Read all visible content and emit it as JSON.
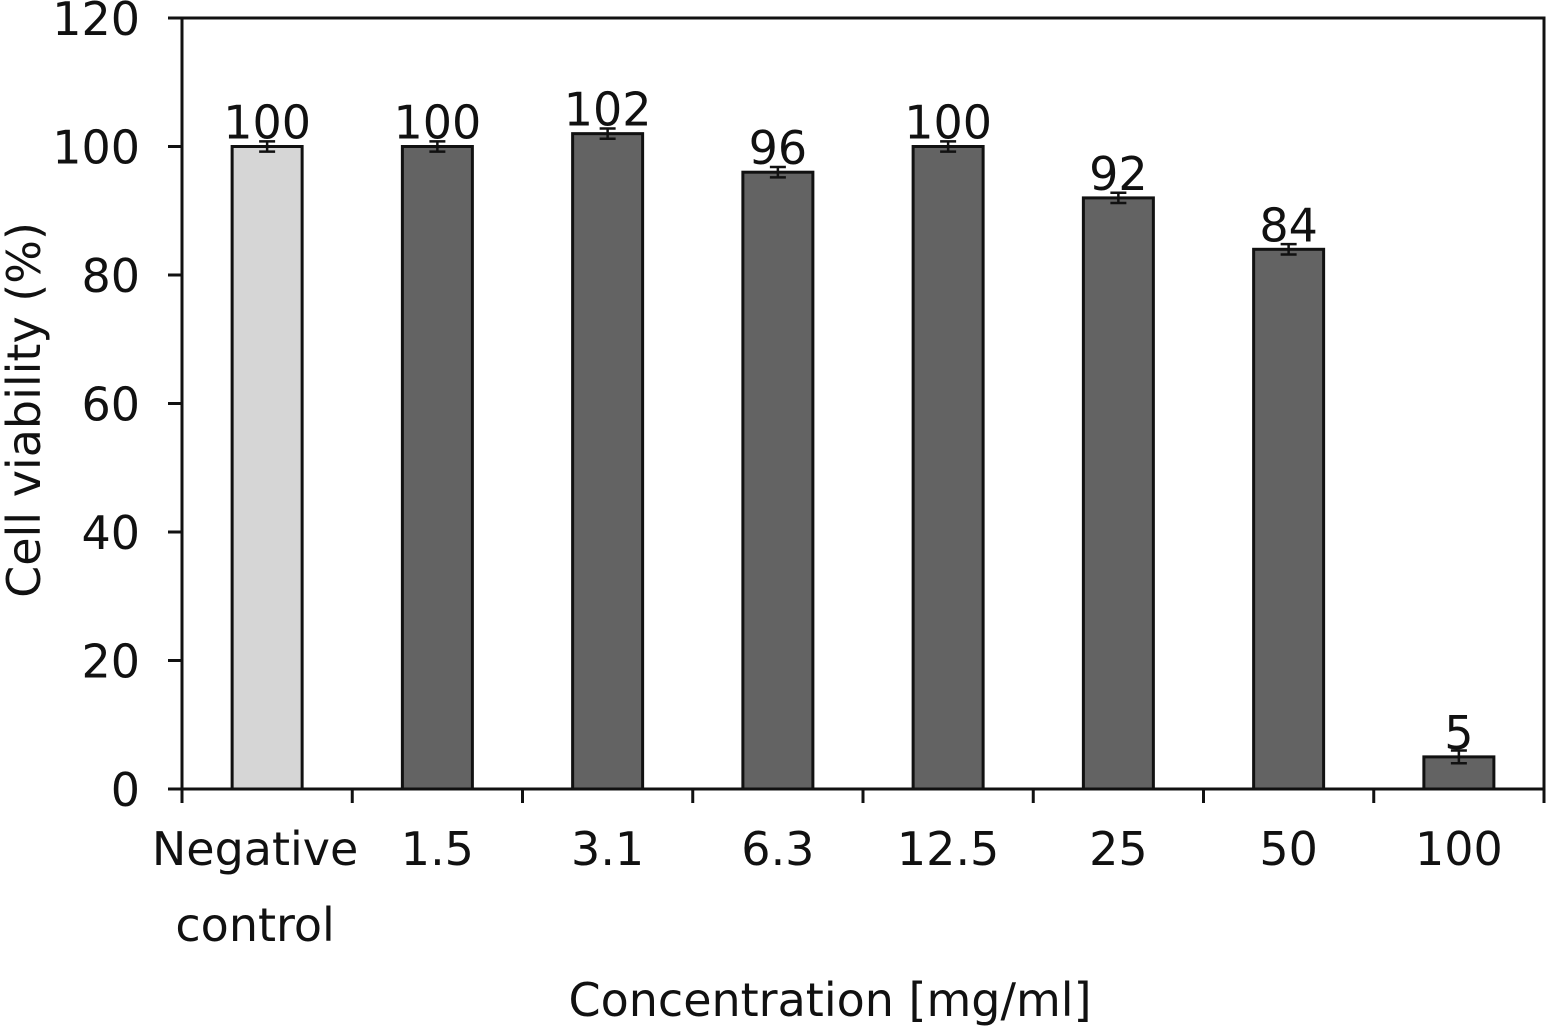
{
  "chart_data": {
    "type": "bar",
    "title": "",
    "xlabel": "Concentration [mg/ml]",
    "ylabel": "Cell viability (%)",
    "ylim": [
      0,
      120
    ],
    "yticks": [
      0,
      20,
      40,
      60,
      80,
      100,
      120
    ],
    "grid": false,
    "categories": [
      [
        "Negative",
        "control"
      ],
      [
        "1.5"
      ],
      [
        "3.1"
      ],
      [
        "6.3"
      ],
      [
        "12.5"
      ],
      [
        "25"
      ],
      [
        "50"
      ],
      [
        "100"
      ]
    ],
    "values": [
      100,
      100,
      102,
      96,
      100,
      92,
      84,
      5
    ],
    "data_labels": [
      "100",
      "100",
      "102",
      "96",
      "100",
      "92",
      "84",
      "5"
    ],
    "errors": [
      0.8,
      0.8,
      0.8,
      0.8,
      0.8,
      0.8,
      0.8,
      1.0
    ],
    "colors": [
      "#d6d6d6",
      "#636363",
      "#636363",
      "#636363",
      "#636363",
      "#636363",
      "#636363",
      "#636363"
    ]
  }
}
